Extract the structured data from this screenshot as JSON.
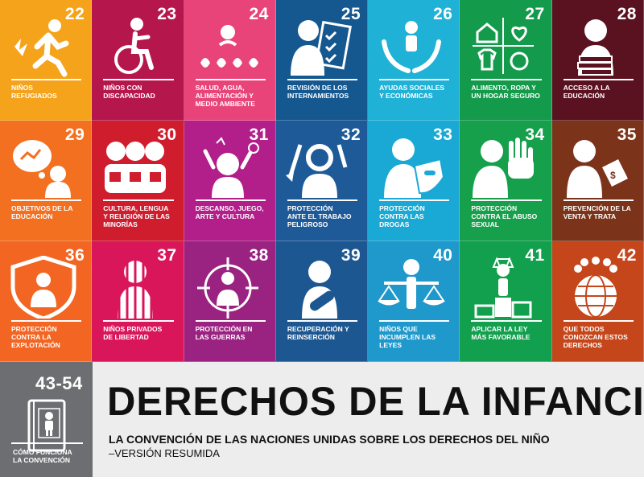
{
  "tiles": [
    {
      "num": "22",
      "label": "NIÑOS\nREFUGIADOS",
      "color": "#f5a31a",
      "icon": "running-child-icon"
    },
    {
      "num": "23",
      "label": "NIÑOS CON\nDISCAPACIDAD",
      "color": "#b5174d",
      "icon": "wheelchair-icon"
    },
    {
      "num": "24",
      "label": "SALUD, AGUA,\nALIMENTACIÓN Y\nMEDIO AMBIENTE",
      "color": "#e8447a",
      "icon": "health-icon"
    },
    {
      "num": "25",
      "label": "REVISIÓN DE LOS\nINTERNAMIENTOS",
      "color": "#14588f",
      "icon": "checklist-icon"
    },
    {
      "num": "26",
      "label": "AYUDAS SOCIALES\nY ECONÓMICAS",
      "color": "#1fb1d6",
      "icon": "hands-child-icon"
    },
    {
      "num": "27",
      "label": "ALIMENTO, ROPA Y\nUN HOGAR SEGURO",
      "color": "#139a4b",
      "icon": "home-clothes-icon"
    },
    {
      "num": "28",
      "label": "ACCESO A LA\nEDUCACIÓN",
      "color": "#5a1220",
      "icon": "books-icon"
    },
    {
      "num": "29",
      "label": "OBJETIVOS DE LA\nEDUCACIÓN",
      "color": "#f37021",
      "icon": "thought-bubble-icon"
    },
    {
      "num": "30",
      "label": "CULTURA, LENGUA\nY RELIGIÓN DE LAS\nMINORÍAS",
      "color": "#cf1d2e",
      "icon": "group-icon"
    },
    {
      "num": "31",
      "label": "DESCANSO, JUEGO,\nARTE Y CULTURA",
      "color": "#b21f8a",
      "icon": "play-icon"
    },
    {
      "num": "32",
      "label": "PROTECCIÓN\nANTE EL TRABAJO\nPELIGROSO",
      "color": "#1f5a98",
      "icon": "labor-icon"
    },
    {
      "num": "33",
      "label": "PROTECCIÓN\nCONTRA LAS\nDROGAS",
      "color": "#1aa9d4",
      "icon": "shield-pills-icon"
    },
    {
      "num": "34",
      "label": "PROTECCIÓN\nCONTRA EL ABUSO\nSEXUAL",
      "color": "#16a04b",
      "icon": "stop-hand-icon"
    },
    {
      "num": "35",
      "label": "PREVENCIÓN DE LA\nVENTA Y TRATA",
      "color": "#7b3419",
      "icon": "price-tag-icon"
    },
    {
      "num": "36",
      "label": "PROTECCIÓN\nCONTRA LA\nEXPLOTACIÓN",
      "color": "#f26522",
      "icon": "shield-family-icon"
    },
    {
      "num": "37",
      "label": "NIÑOS PRIVADOS\nDE LIBERTAD",
      "color": "#d9165a",
      "icon": "prison-icon"
    },
    {
      "num": "38",
      "label": "PROTECCIÓN EN\nLAS GUERRAS",
      "color": "#9a2281",
      "icon": "target-icon"
    },
    {
      "num": "39",
      "label": "RECUPERACIÓN Y\nREINSERCIÓN",
      "color": "#1d5792",
      "icon": "bandage-icon"
    },
    {
      "num": "40",
      "label": "NIÑOS QUE\nINCUMPLEN LAS\nLEYES",
      "color": "#1f98cc",
      "icon": "scales-icon"
    },
    {
      "num": "41",
      "label": "APLICAR LA LEY\nMÁS FAVORABLE",
      "color": "#12a04e",
      "icon": "podium-icon"
    },
    {
      "num": "42",
      "label": "QUE TODOS\nCONOZCAN ESTOS\nDERECHOS",
      "color": "#c4461a",
      "icon": "globe-people-icon"
    }
  ],
  "guide": {
    "num": "43-54",
    "label": "CÓMO FUNCIONA\nLA CONVENCIÓN",
    "color": "#6d6e71",
    "icon": "book-child-icon"
  },
  "banner": {
    "title": "DERECHOS DE LA INFANCIA",
    "subtitle": "LA CONVENCIÓN DE LAS NACIONES UNIDAS SOBRE LOS DERECHOS DEL NIÑO",
    "subtitle2": "–VERSIÓN RESUMIDA"
  }
}
